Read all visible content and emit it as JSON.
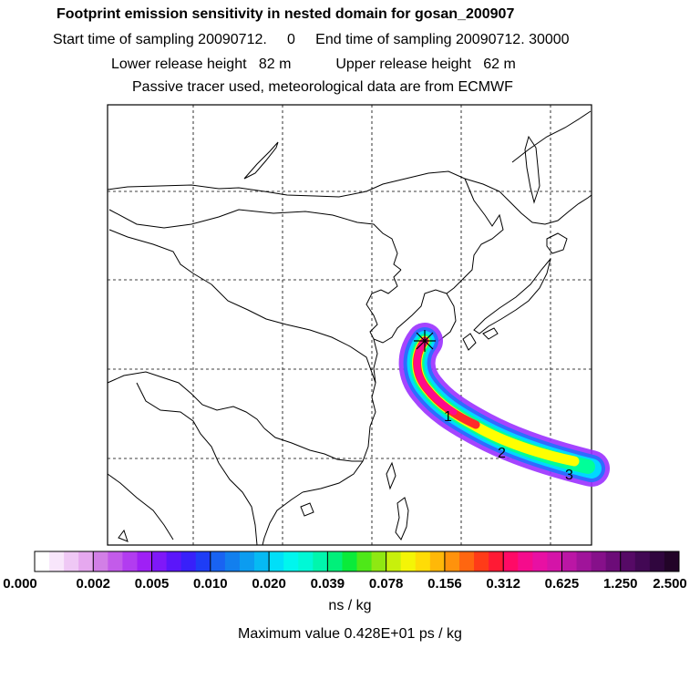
{
  "header": {
    "title": "Footprint emission sensitivity in nested domain for gosan_200907",
    "line2": "Start time of sampling 20090712.     0     End time of sampling 20090712. 30000",
    "line3": "Lower release height   82 m           Upper release height   62 m",
    "line4": "Passive tracer used, meteorological data are from ECMWF"
  },
  "map": {
    "release_marker": "asterisk-icon",
    "day_labels": [
      "1",
      "2",
      "3"
    ],
    "plume_colors": [
      "#9b30ff",
      "#2f6bff",
      "#00d8ff",
      "#00ff99",
      "#ffff00",
      "#ff2a2a",
      "#ff0a8c"
    ],
    "coastline_color": "#000000",
    "grid_style": "dashed"
  },
  "colorbar": {
    "tick_labels": [
      "0.000",
      "0.002",
      "0.005",
      "0.010",
      "0.020",
      "0.039",
      "0.078",
      "0.156",
      "0.312",
      "0.625",
      "1.250",
      "2.500"
    ],
    "colors": [
      "#ffffff",
      "#f8e6fb",
      "#efc8f5",
      "#e6a8ef",
      "#d27fe6",
      "#c35bea",
      "#b23cf0",
      "#9f20f5",
      "#7f18f8",
      "#5b16fa",
      "#3820fa",
      "#1e3df6",
      "#1963f2",
      "#127fee",
      "#0c9cf0",
      "#06baf3",
      "#00dff8",
      "#00f6ee",
      "#00f8d6",
      "#00f6ad",
      "#00f07a",
      "#0aeb3a",
      "#4ee818",
      "#8fe812",
      "#c8f00c",
      "#f4f506",
      "#ffdc06",
      "#ffb808",
      "#ff920c",
      "#ff6610",
      "#ff3b18",
      "#ff1a34",
      "#ff0a66",
      "#f50c8c",
      "#e810a3",
      "#d414a8",
      "#bb16a5",
      "#a0149a",
      "#86108a",
      "#6c0c78",
      "#560a66",
      "#420854",
      "#30063e",
      "#220428"
    ]
  },
  "units": "ns / kg",
  "max_value": "Maximum value  0.428E+01 ps / kg"
}
